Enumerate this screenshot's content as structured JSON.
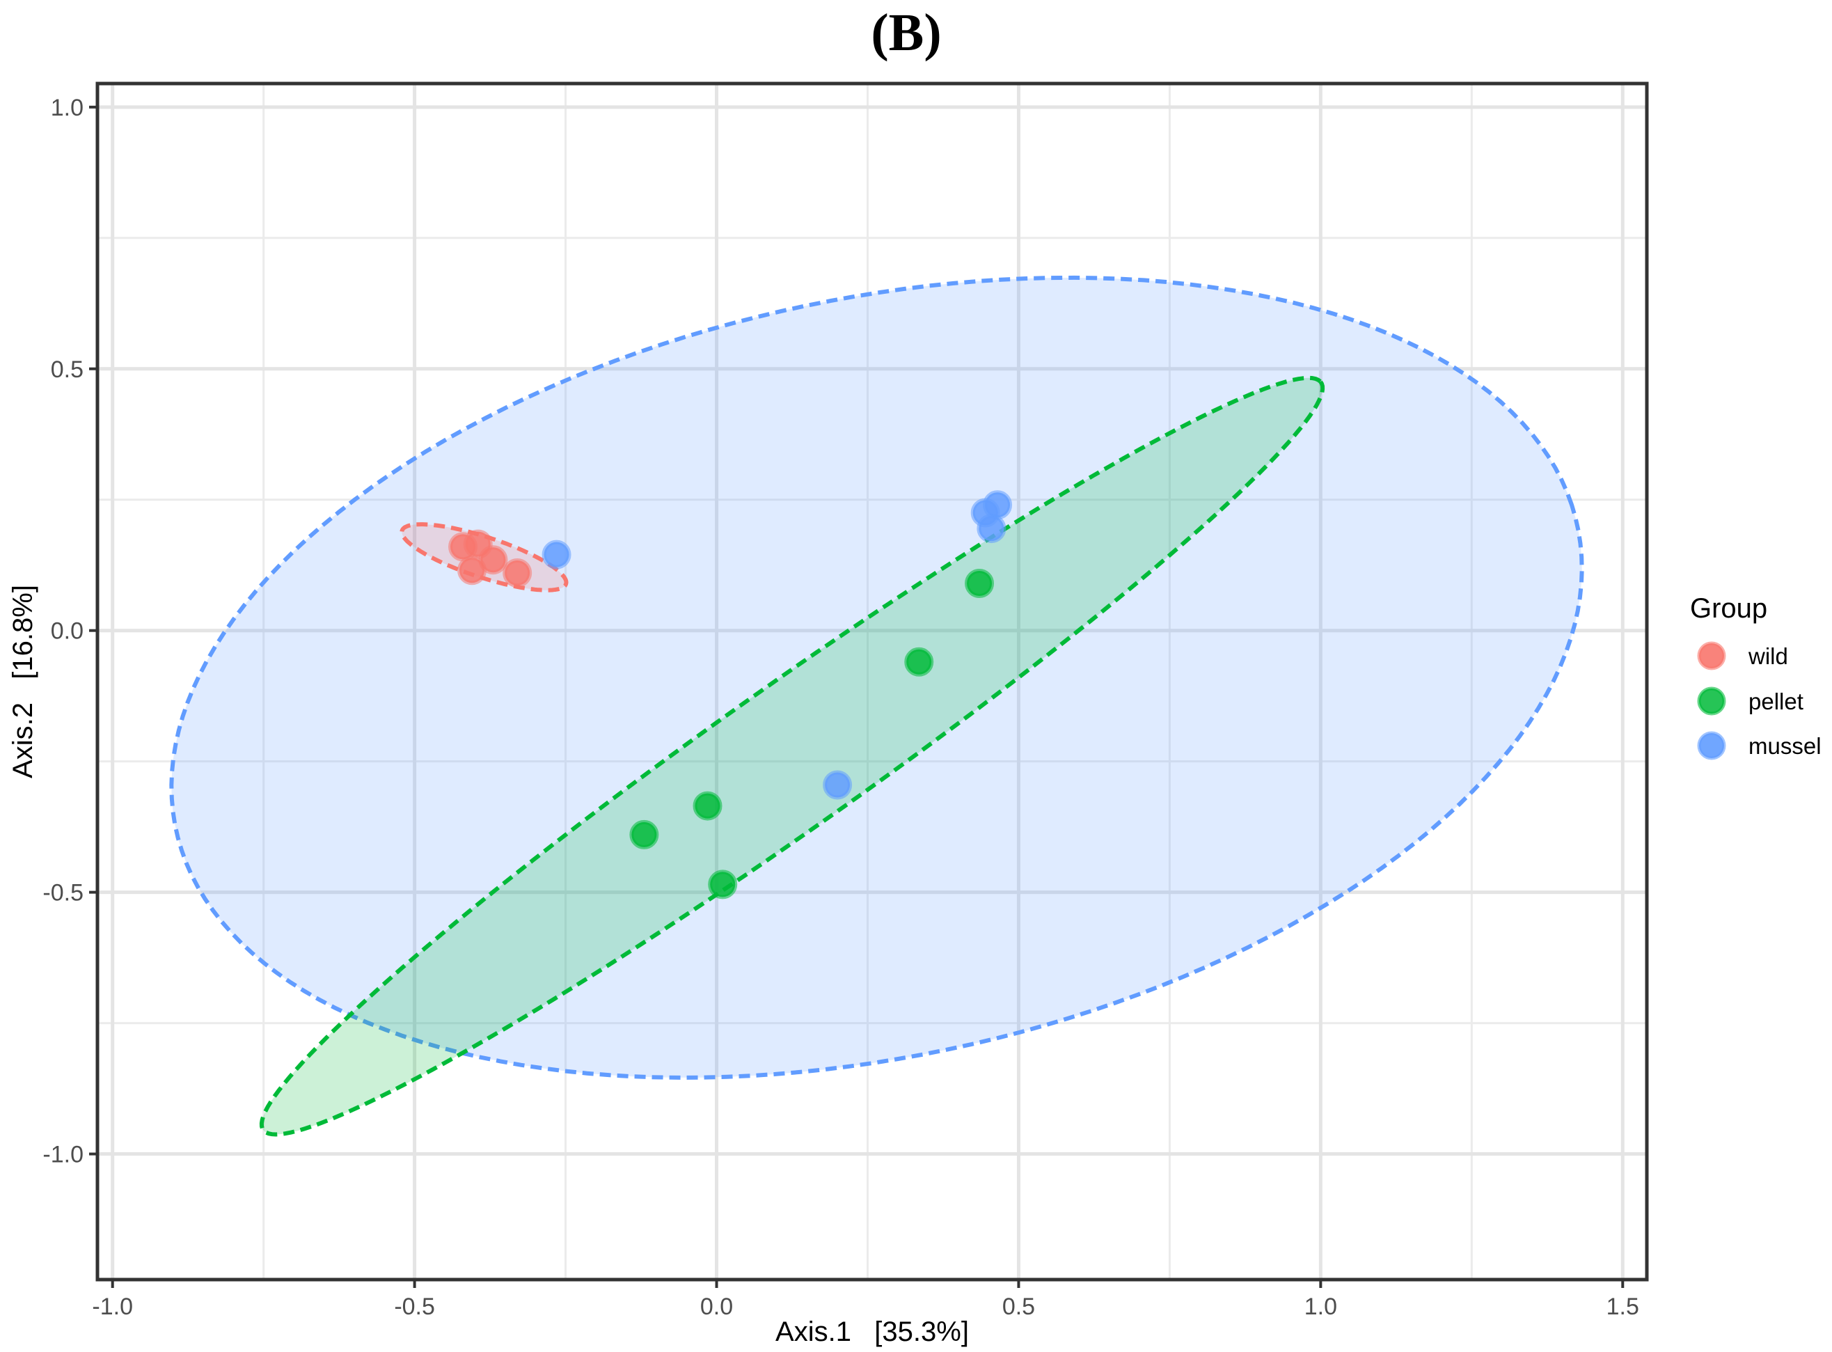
{
  "chart_data": {
    "type": "scatter",
    "title": "(B)",
    "xlabel": "Axis.1   [35.3%]",
    "ylabel": "Axis.2   [16.8%]",
    "xlim": [
      -1.025,
      1.54
    ],
    "ylim": [
      -1.24,
      1.045
    ],
    "x_ticks": [
      -1.0,
      -0.5,
      0.0,
      0.5,
      1.0,
      1.5
    ],
    "x_tick_labels": [
      "-1.0",
      "-0.5",
      "0.0",
      "0.5",
      "1.0",
      "1.5"
    ],
    "y_ticks": [
      1.0,
      0.5,
      0.0,
      -0.5,
      -1.0
    ],
    "y_tick_labels": [
      "1.0",
      "0.5",
      "0.0",
      "-0.5",
      "-1.0"
    ],
    "grid": true,
    "legend": {
      "title": "Group",
      "position": "right",
      "entries": [
        "wild",
        "pellet",
        "mussel"
      ]
    },
    "series": [
      {
        "name": "wild",
        "color": "#F8766D",
        "points": [
          [
            -0.42,
            0.16
          ],
          [
            -0.395,
            0.165
          ],
          [
            -0.37,
            0.135
          ],
          [
            -0.405,
            0.115
          ],
          [
            -0.33,
            0.11
          ]
        ],
        "ellipse": {
          "cx": -0.385,
          "cy": 0.14,
          "rx": 0.145,
          "ry": 0.038,
          "angle_deg": -21
        }
      },
      {
        "name": "pellet",
        "color": "#00BA38",
        "points": [
          [
            0.435,
            0.09
          ],
          [
            0.335,
            -0.06
          ],
          [
            -0.015,
            -0.335
          ],
          [
            -0.12,
            -0.39
          ],
          [
            0.01,
            -0.485
          ]
        ],
        "ellipse": {
          "cx": 0.125,
          "cy": -0.24,
          "rx": 1.13,
          "ry": 0.129,
          "angle_deg": 39.3
        }
      },
      {
        "name": "mussel",
        "color": "#619CFF",
        "points": [
          [
            -0.265,
            0.145
          ],
          [
            0.445,
            0.225
          ],
          [
            0.465,
            0.24
          ],
          [
            0.455,
            0.195
          ],
          [
            0.2,
            -0.295
          ]
        ],
        "ellipse": {
          "cx": 0.265,
          "cy": -0.09,
          "rx": 1.197,
          "ry": 0.717,
          "angle_deg": 16
        }
      }
    ]
  }
}
